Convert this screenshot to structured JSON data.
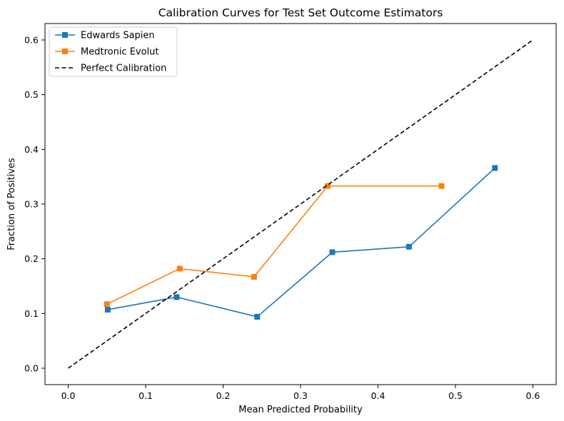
{
  "chart_data": {
    "type": "line",
    "title": "Calibration Curves for Test Set Outcome Estimators",
    "xlabel": "Mean Predicted Probability",
    "ylabel": "Fraction of Positives",
    "xlim": [
      -0.03,
      0.63
    ],
    "ylim": [
      -0.03,
      0.63
    ],
    "xticks": [
      0.0,
      0.1,
      0.2,
      0.3,
      0.4,
      0.5,
      0.6
    ],
    "yticks": [
      0.0,
      0.1,
      0.2,
      0.3,
      0.4,
      0.5,
      0.6
    ],
    "xtick_labels": [
      "0.0",
      "0.1",
      "0.2",
      "0.3",
      "0.4",
      "0.5",
      "0.6"
    ],
    "ytick_labels": [
      "0.0",
      "0.1",
      "0.2",
      "0.3",
      "0.4",
      "0.5",
      "0.6"
    ],
    "grid": false,
    "legend_position": "top-left",
    "series": [
      {
        "name": "Edwards Sapien",
        "color": "#1f77b4",
        "marker": "square",
        "style": "solid",
        "x": [
          0.051,
          0.14,
          0.244,
          0.341,
          0.44,
          0.551
        ],
        "y": [
          0.107,
          0.13,
          0.094,
          0.212,
          0.222,
          0.366
        ]
      },
      {
        "name": "Medtronic Evolut",
        "color": "#ff7f0e",
        "marker": "square",
        "style": "solid",
        "x": [
          0.05,
          0.144,
          0.24,
          0.335,
          0.482
        ],
        "y": [
          0.117,
          0.182,
          0.167,
          0.333,
          0.333
        ]
      },
      {
        "name": "Perfect Calibration",
        "color": "#000000",
        "marker": "none",
        "style": "dashed",
        "x": [
          0.0,
          0.6
        ],
        "y": [
          0.0,
          0.6
        ]
      }
    ]
  }
}
